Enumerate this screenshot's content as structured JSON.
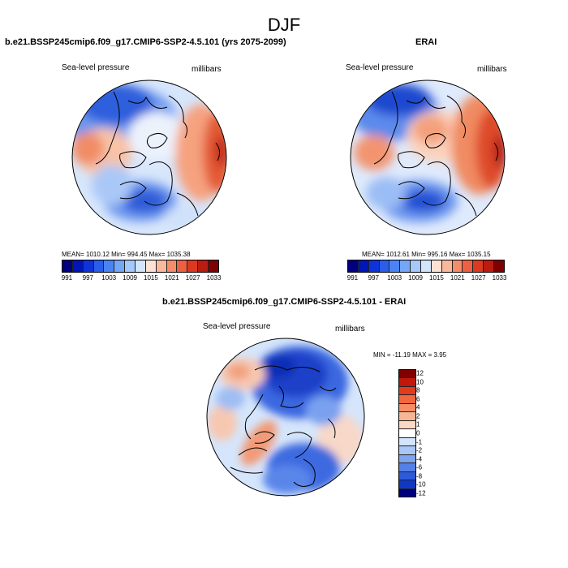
{
  "figure": {
    "title": "DJF"
  },
  "panels": [
    {
      "title": "b.e21.BSSP245cmip6.f09_g17.CMIP6-SSP2-4.5.101 (yrs 2075-2099)",
      "left_label": "Sea-level pressure",
      "right_label": "millibars",
      "stats": "MEAN= 1010.12   Min= 994.45   Max= 1035.38"
    },
    {
      "title": "ERAI",
      "left_label": "Sea-level pressure",
      "right_label": "millibars",
      "stats": "MEAN= 1012.61   Min= 995.16   Max= 1035.15"
    },
    {
      "title": "b.e21.BSSP245cmip6.f09_g17.CMIP6-SSP2-4.5.101 - ERAI",
      "left_label": "Sea-level pressure",
      "right_label": "millibars",
      "stats": "MIN = -11.19  MAX =   3.95"
    }
  ],
  "colorbar_abs": {
    "colors": [
      "#00007f",
      "#0016b8",
      "#0e33d6",
      "#2a5ee8",
      "#4b84f2",
      "#75a7f7",
      "#a4c9fa",
      "#d2e5fc",
      "#fde1d2",
      "#f9b99d",
      "#f58d6c",
      "#ee6042",
      "#db3a22",
      "#b91c10",
      "#7f0000"
    ],
    "labels": [
      "991",
      "997",
      "1003",
      "1009",
      "1015",
      "1021",
      "1027",
      "1033"
    ]
  },
  "colorbar_diff": {
    "colors": [
      "#7f0000",
      "#c0180c",
      "#e33b1e",
      "#f1673f",
      "#f58e66",
      "#f8b596",
      "#fbd7c4",
      "#ffffff",
      "#d3e4fb",
      "#a9c6f6",
      "#7ea3ef",
      "#5580e7",
      "#2e5bdb",
      "#0f38c7",
      "#00007f"
    ],
    "labels": [
      "12",
      "10",
      "8",
      "6",
      "4",
      "2",
      "1",
      "0",
      "-1",
      "-2",
      "-4",
      "-6",
      "-8",
      "-10",
      "-12"
    ]
  },
  "chart_data": {
    "type": "heatmap",
    "title": "DJF",
    "variable": "Sea-level pressure",
    "units": "millibars",
    "maps": [
      {
        "name": "b.e21.BSSP245cmip6.f09_g17.CMIP6-SSP2-4.5.101 (yrs 2075-2099)",
        "mean": 1010.12,
        "min": 994.45,
        "max": 1035.38,
        "colorbar_levels": [
          991,
          994,
          997,
          1000,
          1003,
          1006,
          1009,
          1012,
          1015,
          1018,
          1021,
          1024,
          1027,
          1030,
          1033
        ]
      },
      {
        "name": "ERAI",
        "mean": 1012.61,
        "min": 995.16,
        "max": 1035.15,
        "colorbar_levels": [
          991,
          994,
          997,
          1000,
          1003,
          1006,
          1009,
          1012,
          1015,
          1018,
          1021,
          1024,
          1027,
          1030,
          1033
        ]
      },
      {
        "name": "b.e21.BSSP245cmip6.f09_g17.CMIP6-SSP2-4.5.101 - ERAI",
        "min": -11.19,
        "max": 3.95,
        "colorbar_levels": [
          12,
          10,
          8,
          6,
          4,
          2,
          1,
          0,
          -1,
          -2,
          -4,
          -6,
          -8,
          -10,
          -12
        ]
      }
    ]
  }
}
